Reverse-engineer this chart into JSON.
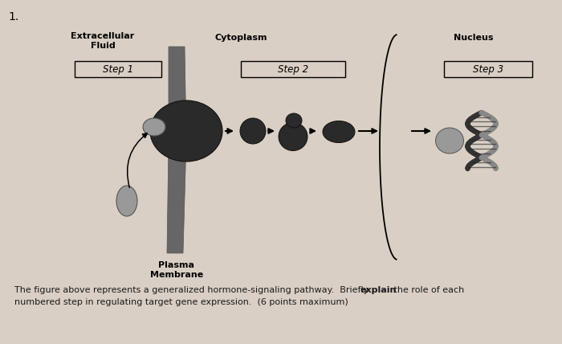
{
  "background_color": "#d9cfc4",
  "title_num": "1.",
  "fig_width": 7.0,
  "fig_height": 4.28,
  "dpi": 100,
  "labels": {
    "extracellular": "Extracellular\nFluid",
    "cytoplasm": "Cytoplasm",
    "nucleus": "Nucleus",
    "plasma_membrane": "Plasma\nMembrane",
    "step1": "Step 1",
    "step2": "Step 2",
    "step3": "Step 3"
  },
  "caption_line1_plain": "The figure above represents a generalized hormone-signaling pathway.  Briefly ",
  "caption_line1_bold": "explain",
  "caption_line1_end": " the role of each",
  "caption_line2": "numbered step in regulating target gene expression.  (6 points maximum)",
  "membrane_color": "#666666",
  "dark_shape_color": "#2a2a2a",
  "medium_shape_color": "#444444",
  "light_shape_color": "#999999",
  "receptor_color": "#888888",
  "hormone_color": "#aaaaaa",
  "dna_dark": "#333333",
  "dna_light": "#888888"
}
